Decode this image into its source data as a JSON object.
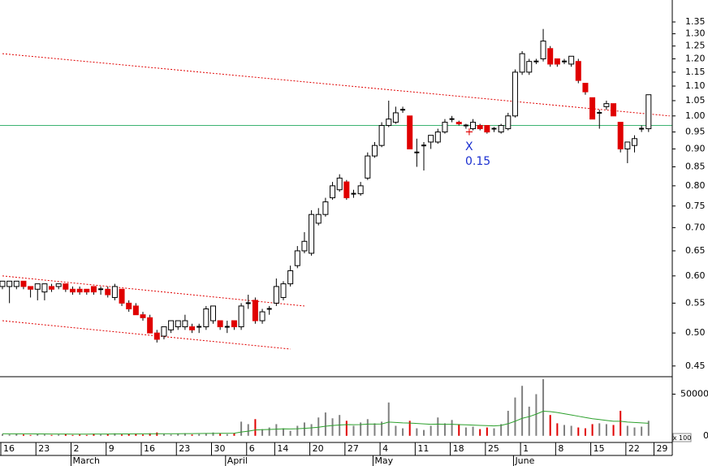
{
  "chart_data": {
    "type": "candlestick",
    "categories": [
      "16",
      null,
      null,
      null,
      null,
      "23",
      null,
      null,
      null,
      null,
      "2",
      null,
      null,
      null,
      null,
      "9",
      null,
      null,
      null,
      null,
      "16",
      null,
      null,
      null,
      null,
      "23",
      null,
      null,
      null,
      null,
      "30",
      null,
      null,
      null,
      null,
      "6",
      null,
      null,
      null,
      "14",
      null,
      null,
      null,
      null,
      "20",
      null,
      null,
      null,
      null,
      "27",
      null,
      null,
      null,
      null,
      "4",
      null,
      null,
      null,
      null,
      "11",
      null,
      null,
      null,
      null,
      "18",
      null,
      null,
      null,
      null,
      "25",
      null,
      null,
      null,
      null,
      "1",
      null,
      null,
      null,
      null,
      "8",
      null,
      null,
      null,
      null,
      "15",
      null,
      null,
      null,
      null,
      "22",
      null,
      null,
      null,
      "29"
    ],
    "months": [
      null,
      null,
      null,
      null,
      null,
      null,
      null,
      null,
      null,
      null,
      "March",
      null,
      null,
      null,
      null,
      null,
      null,
      null,
      null,
      null,
      null,
      null,
      null,
      null,
      null,
      null,
      null,
      null,
      null,
      null,
      null,
      null,
      "April",
      null,
      null,
      null,
      null,
      null,
      null,
      null,
      null,
      null,
      null,
      null,
      null,
      null,
      null,
      null,
      null,
      null,
      null,
      null,
      null,
      "May",
      null,
      null,
      null,
      null,
      null,
      null,
      null,
      null,
      null,
      null,
      null,
      null,
      null,
      null,
      null,
      null,
      null,
      null,
      null,
      "June",
      null,
      null,
      null,
      null,
      null,
      null,
      null,
      null,
      null,
      null,
      null,
      null,
      null,
      null,
      null,
      null,
      null,
      null,
      null,
      null
    ],
    "open": [
      0.58,
      0.58,
      0.58,
      0.59,
      0.58,
      0.575,
      0.57,
      0.58,
      0.58,
      0.585,
      0.575,
      0.575,
      0.575,
      0.58,
      0.575,
      0.575,
      0.56,
      0.575,
      0.55,
      0.545,
      0.53,
      0.525,
      0.5,
      0.495,
      0.505,
      0.51,
      0.51,
      0.51,
      0.51,
      0.51,
      0.52,
      0.52,
      0.51,
      0.52,
      0.51,
      0.55,
      0.555,
      0.52,
      0.54,
      0.55,
      0.56,
      0.585,
      0.62,
      0.65,
      0.645,
      0.71,
      0.73,
      0.77,
      0.79,
      0.81,
      0.78,
      0.78,
      0.82,
      0.88,
      0.91,
      0.97,
      0.98,
      1.02,
      1.0,
      0.89,
      0.91,
      0.92,
      0.92,
      0.95,
      0.99,
      0.98,
      0.97,
      0.96,
      0.97,
      0.97,
      0.96,
      0.95,
      0.96,
      1.0,
      1.15,
      1.15,
      1.19,
      1.2,
      1.24,
      1.2,
      1.19,
      1.18,
      1.19,
      1.11,
      1.06,
      1.01,
      1.03,
      1.04,
      0.98,
      0.9,
      0.91,
      0.96,
      0.96,
      null
    ],
    "high": [
      0.59,
      0.59,
      0.59,
      0.59,
      0.58,
      0.585,
      0.585,
      0.585,
      0.585,
      0.585,
      0.58,
      0.58,
      0.575,
      0.58,
      0.58,
      0.58,
      0.585,
      0.575,
      0.555,
      0.55,
      0.535,
      0.53,
      0.505,
      0.51,
      0.52,
      0.52,
      0.53,
      0.515,
      0.515,
      0.545,
      0.545,
      0.52,
      0.52,
      0.52,
      0.55,
      0.565,
      0.56,
      0.54,
      0.545,
      0.595,
      0.59,
      0.62,
      0.66,
      0.69,
      0.74,
      0.745,
      0.77,
      0.81,
      0.83,
      0.815,
      0.79,
      0.81,
      0.89,
      0.92,
      0.98,
      1.05,
      1.03,
      1.03,
      1.0,
      0.93,
      0.92,
      0.94,
      0.96,
      0.99,
      1.0,
      0.985,
      0.975,
      0.99,
      0.975,
      0.97,
      0.965,
      0.975,
      1.01,
      1.16,
      1.23,
      1.2,
      1.2,
      1.32,
      1.25,
      1.2,
      1.2,
      1.21,
      1.2,
      1.11,
      1.06,
      1.02,
      1.05,
      1.04,
      0.98,
      0.92,
      0.94,
      0.97,
      1.07,
      null
    ],
    "low": [
      0.575,
      0.55,
      0.575,
      0.575,
      0.56,
      0.555,
      0.555,
      0.57,
      0.575,
      0.57,
      0.565,
      0.565,
      0.565,
      0.565,
      0.565,
      0.56,
      0.555,
      0.545,
      0.535,
      0.53,
      0.52,
      0.5,
      0.485,
      0.49,
      0.5,
      0.505,
      0.505,
      0.5,
      0.5,
      0.505,
      0.515,
      0.505,
      0.5,
      0.505,
      0.505,
      0.54,
      0.515,
      0.515,
      0.53,
      0.545,
      0.555,
      0.58,
      0.615,
      0.645,
      0.64,
      0.705,
      0.725,
      0.765,
      0.785,
      0.765,
      0.77,
      0.775,
      0.815,
      0.875,
      0.905,
      0.965,
      0.975,
      1.01,
      0.9,
      0.85,
      0.84,
      0.9,
      0.915,
      0.945,
      0.98,
      0.97,
      0.96,
      0.955,
      0.955,
      0.945,
      0.95,
      0.945,
      0.955,
      0.995,
      1.14,
      1.14,
      1.18,
      1.19,
      1.17,
      1.17,
      1.18,
      1.17,
      1.11,
      1.07,
      0.99,
      0.96,
      1.02,
      1.0,
      0.89,
      0.86,
      0.89,
      0.95,
      0.95,
      null
    ],
    "close": [
      0.59,
      0.59,
      0.59,
      0.58,
      0.575,
      0.585,
      0.585,
      0.575,
      0.585,
      0.575,
      0.57,
      0.57,
      0.57,
      0.57,
      0.575,
      0.565,
      0.58,
      0.55,
      0.54,
      0.53,
      0.525,
      0.5,
      0.49,
      0.51,
      0.52,
      0.52,
      0.52,
      0.505,
      0.51,
      0.54,
      0.545,
      0.51,
      0.51,
      0.51,
      0.545,
      0.55,
      0.52,
      0.535,
      0.54,
      0.58,
      0.585,
      0.61,
      0.65,
      0.67,
      0.73,
      0.73,
      0.76,
      0.8,
      0.82,
      0.77,
      0.78,
      0.8,
      0.88,
      0.91,
      0.97,
      0.99,
      1.01,
      1.02,
      0.9,
      0.89,
      0.91,
      0.94,
      0.95,
      0.98,
      0.99,
      0.975,
      0.97,
      0.98,
      0.96,
      0.95,
      0.96,
      0.97,
      1.0,
      1.15,
      1.22,
      1.19,
      1.19,
      1.27,
      1.18,
      1.18,
      1.19,
      1.21,
      1.12,
      1.08,
      0.99,
      1.01,
      1.04,
      1.0,
      0.9,
      0.92,
      0.93,
      0.96,
      1.07,
      null
    ],
    "up_color": "#ffffff",
    "down_color": "#e00000",
    "log_scale": true,
    "ylim": [
      0.436,
      1.448
    ],
    "yticks": [
      1.35,
      {
        "value": 1.3,
        "label": "1.30"
      },
      1.25,
      {
        "value": 1.2,
        "label": "1.20"
      },
      1.15,
      {
        "value": 1.1,
        "label": "1.10"
      },
      1.05,
      {
        "value": 1,
        "label": "1.00"
      },
      0.95,
      {
        "value": 0.9,
        "label": "0.90"
      },
      0.85,
      {
        "value": 0.8,
        "label": "0.80"
      },
      0.75,
      {
        "value": 0.7,
        "label": "0.70"
      },
      0.65,
      {
        "value": 0.6,
        "label": "0.60"
      },
      0.55,
      {
        "value": 0.5,
        "label": "0.50"
      },
      0.45
    ],
    "reference_line": {
      "value": 0.97,
      "color": "#3cb371"
    },
    "trend_lines": [
      {
        "x": [
          0,
          95
        ],
        "y": [
          1.22,
          1.0
        ],
        "color": "#e00000"
      },
      {
        "x": [
          0,
          43
        ],
        "y": [
          0.6,
          0.545
        ],
        "color": "#e00000"
      },
      {
        "x": [
          0,
          41
        ],
        "y": [
          0.52,
          0.475
        ],
        "color": "#e00000"
      }
    ],
    "annotations": [
      "X",
      "0.15"
    ],
    "volume": {
      "values": [
        2000,
        1500,
        2500,
        1500,
        1000,
        2000,
        1500,
        1000,
        1500,
        2000,
        1000,
        1500,
        1000,
        2500,
        1500,
        2000,
        3000,
        1500,
        2000,
        2500,
        1500,
        3000,
        4000,
        2000,
        1500,
        2500,
        3000,
        1500,
        2000,
        3000,
        4000,
        2500,
        2000,
        3000,
        17000,
        14000,
        20000,
        8000,
        10000,
        14000,
        9000,
        6000,
        12000,
        16000,
        14000,
        22000,
        28000,
        21000,
        25000,
        18000,
        12000,
        16000,
        20000,
        15000,
        17000,
        40000,
        12000,
        9000,
        18000,
        9000,
        7000,
        12000,
        22000,
        15000,
        19000,
        14000,
        10000,
        11000,
        8000,
        10000,
        9000,
        14000,
        30000,
        46000,
        60000,
        35000,
        50000,
        68000,
        25000,
        15000,
        13000,
        12000,
        10000,
        9000,
        14000,
        15000,
        14000,
        13000,
        30000,
        12000,
        10000,
        11000,
        18000,
        null
      ],
      "average": [
        2500,
        2400,
        2400,
        2300,
        2300,
        2200,
        2200,
        2100,
        2100,
        2100,
        2000,
        2000,
        2000,
        2100,
        2100,
        2100,
        2200,
        2200,
        2200,
        2300,
        2300,
        2400,
        2500,
        2500,
        2500,
        2500,
        2600,
        2600,
        2700,
        2800,
        2900,
        3000,
        3000,
        3100,
        4500,
        5500,
        7000,
        7300,
        7600,
        8000,
        8300,
        8200,
        8500,
        9000,
        9500,
        10300,
        11500,
        12300,
        13000,
        13500,
        13300,
        13500,
        14000,
        14000,
        14200,
        16500,
        16000,
        15500,
        15300,
        14800,
        14300,
        13800,
        14000,
        13800,
        13800,
        13500,
        13200,
        12900,
        12500,
        12200,
        11900,
        12500,
        14500,
        17500,
        21000,
        23000,
        26000,
        29500,
        29000,
        28000,
        26500,
        25000,
        23500,
        22000,
        20500,
        19500,
        18500,
        17500,
        17500,
        16500,
        16000,
        15500,
        15000,
        null
      ],
      "up_color": "#808080",
      "down_color": "#e00000",
      "average_color": "#2ca02c",
      "ylim": [
        -8000,
        70000
      ],
      "yticks": [
        0,
        50000
      ],
      "unit_label": "x 100"
    }
  }
}
